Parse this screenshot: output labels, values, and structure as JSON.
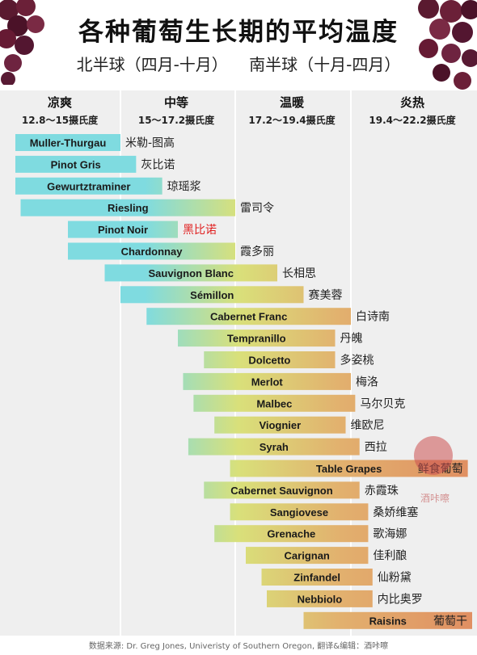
{
  "title": "各种葡萄生长期的平均温度",
  "subtitle_north": "北半球（四月-十月）",
  "subtitle_south": "南半球（十月-四月）",
  "source": "数据来源: Dr. Greg Jones, Univeristy of Southern Oregon,  翻译&编辑：酒咔嚓",
  "watermark": "酒咔嚓",
  "colors": {
    "cool": "#7fdbe0",
    "mid": "#d9e07a",
    "warm": "#e2b06e",
    "hot": "#e08f62",
    "highlight_label": "#e02020",
    "grid": "#ffffff",
    "bg": "#efefef"
  },
  "chart_data": {
    "type": "bar",
    "orientation": "horizontal-range",
    "x_unit": "摄氏度",
    "bands": [
      {
        "name": "凉爽",
        "range": "12.8～15摄氏度",
        "from": 12.8,
        "to": 15
      },
      {
        "name": "中等",
        "range": "15～17.2摄氏度",
        "from": 15,
        "to": 17.2
      },
      {
        "name": "温暖",
        "range": "17.2～19.4摄氏度",
        "from": 17.2,
        "to": 19.4
      },
      {
        "name": "炎热",
        "range": "19.4～22.2摄氏度",
        "from": 19.4,
        "to": 22.2
      }
    ],
    "xlim": [
      12.8,
      22.2
    ],
    "grapes": [
      {
        "name": "Muller-Thurgau",
        "cn": "米勒-图高",
        "min": 13.0,
        "max": 15.0
      },
      {
        "name": "Pinot Gris",
        "cn": "灰比诺",
        "min": 13.0,
        "max": 15.3
      },
      {
        "name": "Gewurtztraminer",
        "cn": "琼瑶浆",
        "min": 13.0,
        "max": 15.8
      },
      {
        "name": "Riesling",
        "cn": "雷司令",
        "min": 13.1,
        "max": 17.2
      },
      {
        "name": "Pinot Noir",
        "cn": "黑比诺",
        "min": 14.0,
        "max": 16.1,
        "highlight": true
      },
      {
        "name": "Chardonnay",
        "cn": "霞多丽",
        "min": 14.0,
        "max": 17.2
      },
      {
        "name": "Sauvignon Blanc",
        "cn": "长相思",
        "min": 14.7,
        "max": 18.0
      },
      {
        "name": "Sémillon",
        "cn": "赛美蓉",
        "min": 15.0,
        "max": 18.5
      },
      {
        "name": "Cabernet Franc",
        "cn": "白诗南",
        "min": 15.5,
        "max": 19.4
      },
      {
        "name": "Tempranillo",
        "cn": "丹魄",
        "min": 16.1,
        "max": 19.1
      },
      {
        "name": "Dolcetto",
        "cn": "多姿桃",
        "min": 16.6,
        "max": 19.1
      },
      {
        "name": "Merlot",
        "cn": "梅洛",
        "min": 16.2,
        "max": 19.4
      },
      {
        "name": "Malbec",
        "cn": "马尔贝克",
        "min": 16.4,
        "max": 19.5
      },
      {
        "name": "Viognier",
        "cn": "维欧尼",
        "min": 16.8,
        "max": 19.3
      },
      {
        "name": "Syrah",
        "cn": "西拉",
        "min": 16.3,
        "max": 19.6
      },
      {
        "name": "Table Grapes",
        "cn": "鲜食葡萄",
        "min": 17.1,
        "max": 22.1
      },
      {
        "name": "Cabernet Sauvignon",
        "cn": "赤霞珠",
        "min": 16.6,
        "max": 19.6
      },
      {
        "name": "Sangiovese",
        "cn": "桑娇维塞",
        "min": 17.1,
        "max": 19.8
      },
      {
        "name": "Grenache",
        "cn": "歌海娜",
        "min": 16.8,
        "max": 19.8
      },
      {
        "name": "Carignan",
        "cn": "佳利酿",
        "min": 17.4,
        "max": 19.8
      },
      {
        "name": "Zinfandel",
        "cn": "仙粉黛",
        "min": 17.7,
        "max": 19.9
      },
      {
        "name": "Nebbiolo",
        "cn": "内比奥罗",
        "min": 17.8,
        "max": 19.9
      },
      {
        "name": "Raisins",
        "cn": "葡萄干",
        "min": 18.5,
        "max": 22.2
      }
    ]
  }
}
